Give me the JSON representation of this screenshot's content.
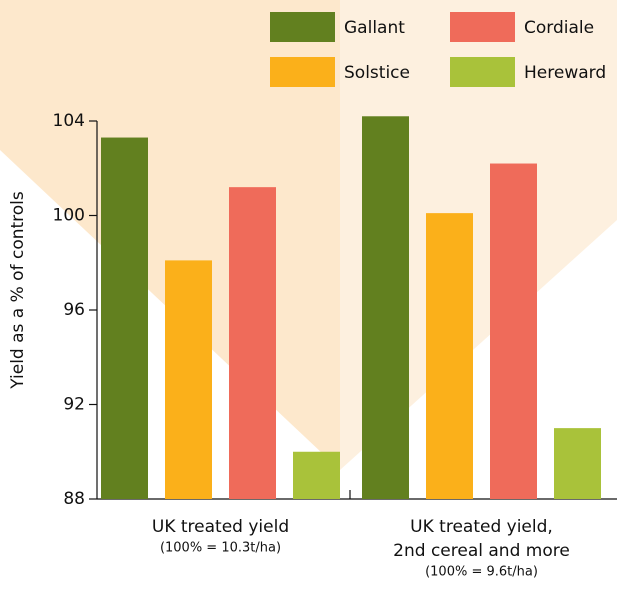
{
  "chart_data": {
    "type": "bar",
    "y_label": "Yield as a % of controls",
    "categories": [
      [
        "UK treated yield"
      ],
      [
        "UK treated yield,",
        "2nd cereal and more"
      ]
    ],
    "category_notes": [
      "(100% = 10.3t/ha)",
      "(100% = 9.6t/ha)"
    ],
    "series": [
      {
        "name": "Gallant",
        "color": "#62801f",
        "values": [
          103.3,
          104.2
        ]
      },
      {
        "name": "Solstice",
        "color": "#fbb01a",
        "values": [
          98.1,
          100.1
        ]
      },
      {
        "name": "Cordiale",
        "color": "#ef6b5a",
        "values": [
          101.2,
          102.2
        ]
      },
      {
        "name": "Hereward",
        "color": "#a9c23a",
        "values": [
          90.0,
          91.0
        ]
      }
    ],
    "ylim": [
      88,
      104
    ],
    "yticks": [
      88,
      92,
      96,
      100,
      104
    ]
  }
}
